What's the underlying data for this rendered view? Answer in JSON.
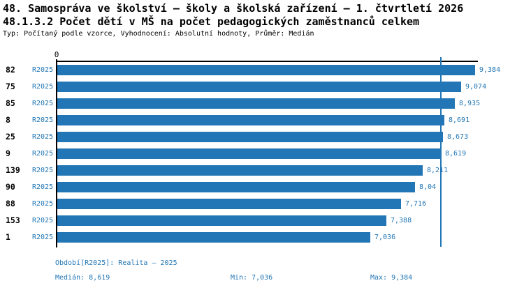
{
  "header": {
    "title_line1": "48. Samospráva ve školství – školy a školská zařízení – 1. čtvrtletí 2026",
    "title_line2": "48.1.3.2 Počet dětí v MŠ na počet pedagogických zaměstnanců celkem",
    "meta": "Typ: Počítaný podle vzorce, Vyhodnocení: Absolutní hodnoty, Průměr: Medián"
  },
  "chart_data": {
    "type": "bar",
    "orientation": "horizontal",
    "title": "48.1.3.2 Počet dětí v MŠ na počet pedagogických zaměstnanců celkem",
    "categories": [
      "82",
      "75",
      "85",
      "8",
      "25",
      "9",
      "139",
      "90",
      "88",
      "153",
      "1"
    ],
    "series": [
      {
        "name": "R2025",
        "values": [
          9.384,
          9.074,
          8.935,
          8.691,
          8.673,
          8.619,
          8.211,
          8.04,
          7.716,
          7.388,
          7.036
        ],
        "value_labels": [
          "9,384",
          "9,074",
          "8,935",
          "8,691",
          "8,673",
          "8,619",
          "8,211",
          "8,04",
          "7,716",
          "7,388",
          "7,036"
        ]
      }
    ],
    "axis_zero_label": "0",
    "xlim": [
      0,
      9.45
    ],
    "grid": false,
    "legend": "none",
    "median_value": 8.619,
    "median_line": true,
    "bar_color": "#2276b5",
    "median_line_color": "#2276b5",
    "axis_color": "#000000"
  },
  "footer": {
    "period_label": "Období[R2025]: Realita – 2025",
    "median_label": "Medián: 8,619",
    "min_label": "Min: 7,036",
    "max_label": "Max: 9,384"
  },
  "colors": {
    "accent_blue": "#2276b5",
    "text_black": "#000000",
    "background": "#ffffff"
  }
}
